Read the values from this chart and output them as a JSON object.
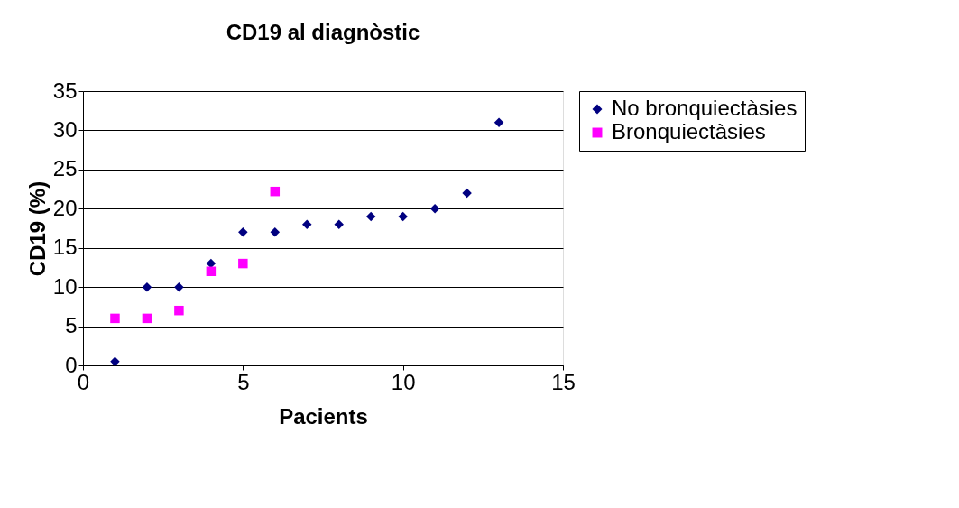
{
  "chart_data": {
    "type": "scatter",
    "title": "CD19 al diagnòstic",
    "xlabel": "Pacients",
    "ylabel": "CD19 (%)",
    "xlim": [
      0,
      15
    ],
    "xticks": [
      0,
      5,
      10,
      15
    ],
    "ylim": [
      0,
      35
    ],
    "yticks": [
      0,
      5,
      10,
      15,
      20,
      25,
      30,
      35
    ],
    "grid": "y",
    "legend": "right",
    "series": [
      {
        "name": "No bronquiectàsies",
        "color": "#000080",
        "marker": "diamond",
        "x": [
          1,
          2,
          3,
          4,
          5,
          6,
          7,
          8,
          9,
          10,
          11,
          12,
          13
        ],
        "values": [
          0.5,
          10,
          10,
          13,
          17,
          17,
          18,
          18,
          19,
          19,
          20,
          22,
          31
        ]
      },
      {
        "name": "Bronquiectàsies",
        "color": "#ff00ff",
        "marker": "square",
        "x": [
          1,
          2,
          3,
          4,
          5,
          6
        ],
        "values": [
          6,
          6,
          7,
          12,
          13,
          22.2
        ]
      }
    ]
  }
}
